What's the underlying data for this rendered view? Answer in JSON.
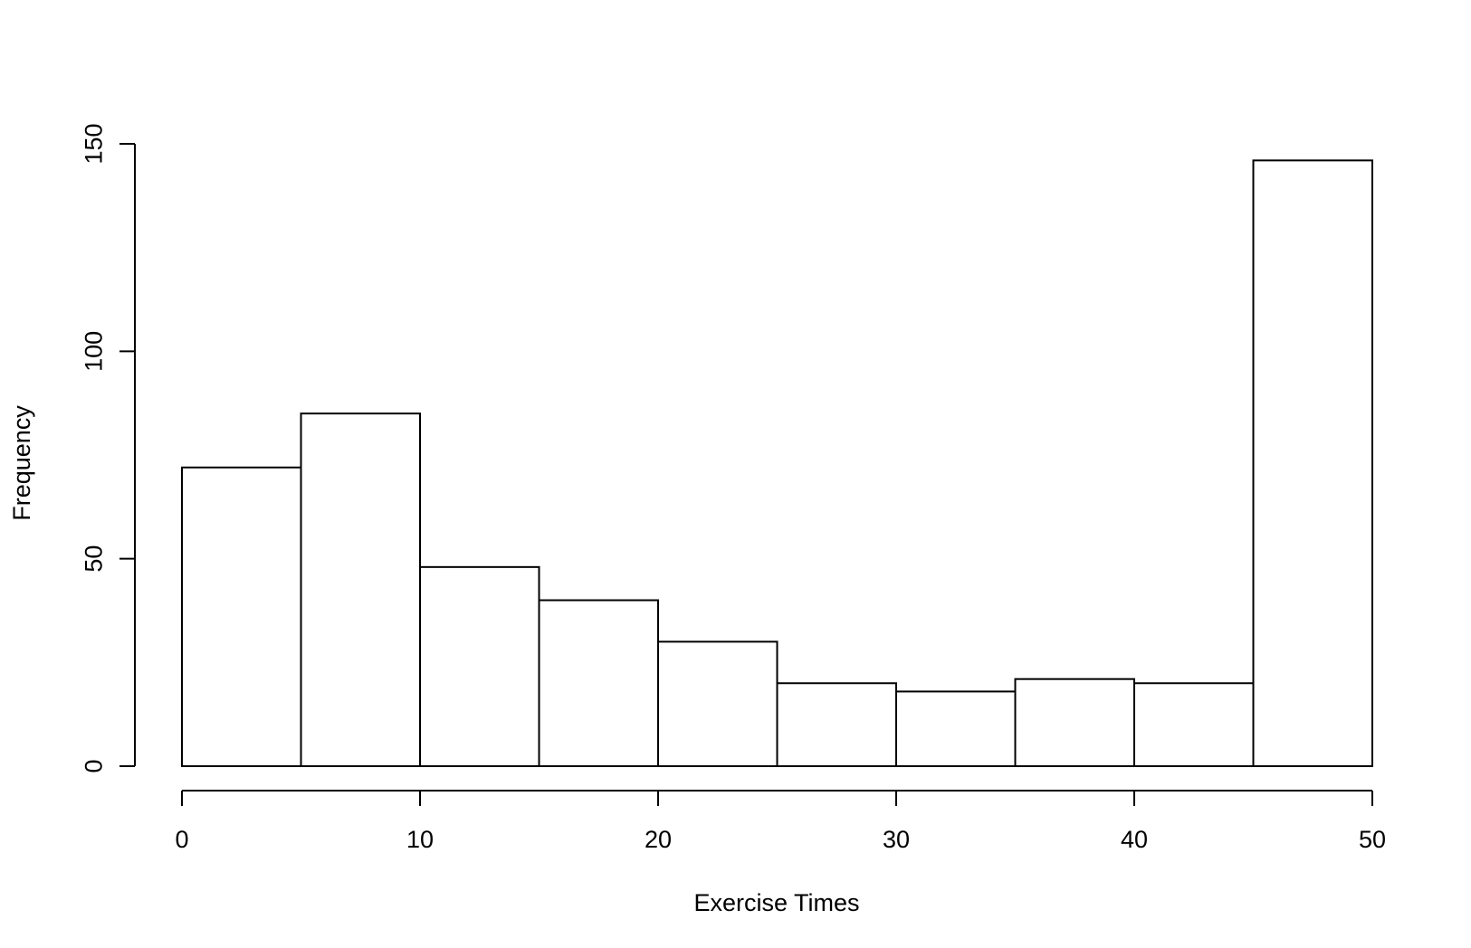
{
  "chart_data": {
    "type": "bar",
    "title": "",
    "xlabel": "Exercise Times",
    "ylabel": "Frequency",
    "bins": [
      {
        "x0": 0,
        "x1": 5,
        "count": 72
      },
      {
        "x0": 5,
        "x1": 10,
        "count": 85
      },
      {
        "x0": 10,
        "x1": 15,
        "count": 48
      },
      {
        "x0": 15,
        "x1": 20,
        "count": 40
      },
      {
        "x0": 20,
        "x1": 25,
        "count": 30
      },
      {
        "x0": 25,
        "x1": 30,
        "count": 20
      },
      {
        "x0": 30,
        "x1": 35,
        "count": 18
      },
      {
        "x0": 35,
        "x1": 40,
        "count": 21
      },
      {
        "x0": 40,
        "x1": 45,
        "count": 20
      },
      {
        "x0": 45,
        "x1": 50,
        "count": 146
      }
    ],
    "xlim": [
      0,
      50
    ],
    "ylim": [
      0,
      150
    ],
    "x_ticks": [
      "0",
      "10",
      "20",
      "30",
      "40",
      "50"
    ],
    "y_ticks": [
      "0",
      "50",
      "100",
      "150"
    ],
    "grid": false,
    "bar_fill": "#ffffff",
    "bar_stroke": "#000000"
  }
}
